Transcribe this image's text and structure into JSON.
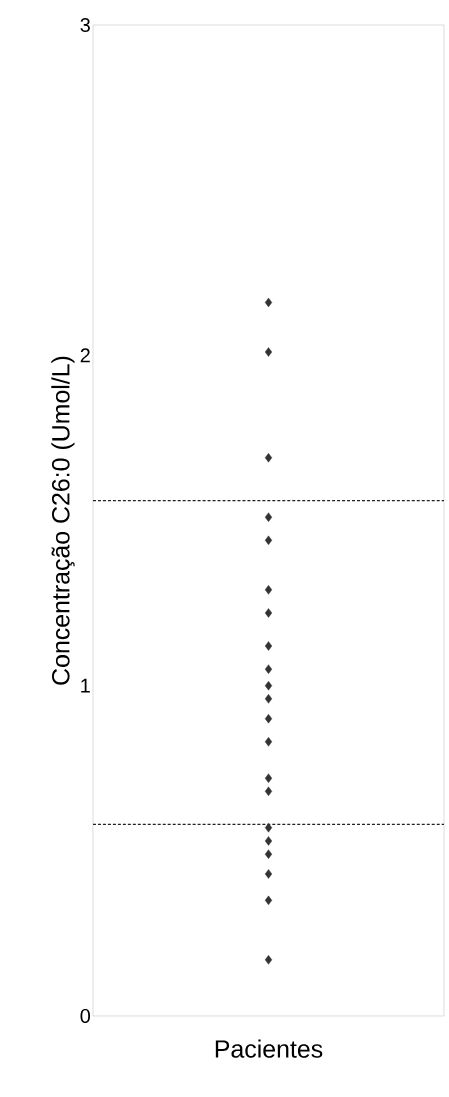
{
  "chart_data": {
    "type": "scatter",
    "xlabel": "Pacientes",
    "ylabel": "Concentração C26:0 (Umol/L)",
    "categories": [
      null
    ],
    "series": [
      {
        "color": "#333333",
        "x": [
          null,
          null,
          null,
          null,
          null,
          null,
          null,
          null,
          null,
          null,
          null,
          null,
          null,
          null,
          null,
          null,
          null,
          null,
          null,
          null,
          null
        ],
        "values": [
          2.16,
          2.01,
          1.69,
          1.51,
          1.44,
          1.29,
          1.22,
          1.12,
          1.05,
          1.0,
          0.96,
          0.9,
          0.83,
          0.72,
          0.68,
          0.57,
          0.53,
          0.49,
          0.43,
          0.35,
          0.17
        ]
      }
    ],
    "marker": "diamond",
    "ylim": [
      0,
      3
    ],
    "yticks": [
      0,
      1,
      2,
      3
    ],
    "grid": false,
    "ref_lines": [
      {
        "axis": "y",
        "value": 1.56,
        "color": "#222222",
        "line_style": "dashed"
      },
      {
        "axis": "y",
        "value": 0.58,
        "color": "#222222",
        "line_style": "dashed"
      }
    ]
  }
}
